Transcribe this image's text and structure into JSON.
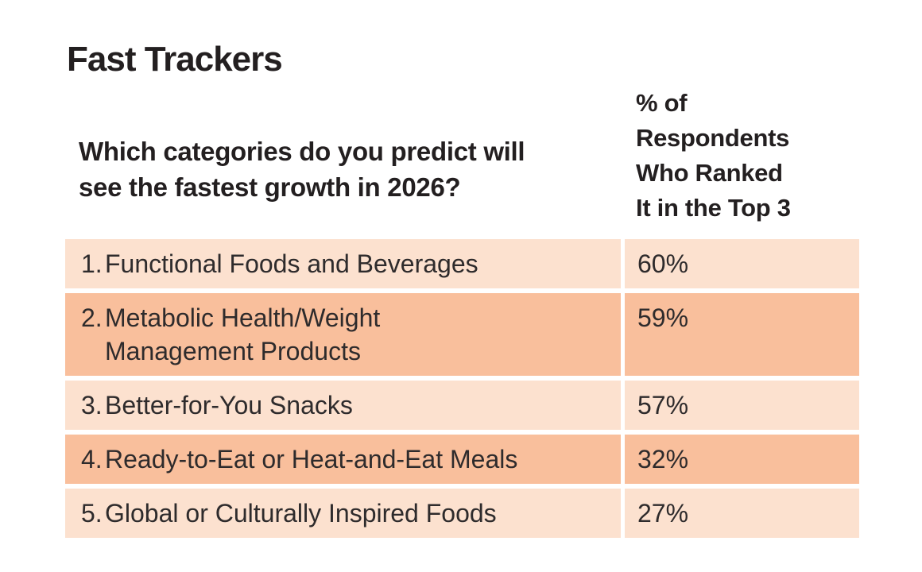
{
  "title": "Fast Trackers",
  "table": {
    "question": "Which categories do you predict will\nsee the fastest growth in 2026?",
    "value_header": "% of\nRespondents\nWho Ranked\nIt in the Top 3",
    "rows": [
      {
        "rank": "1.",
        "label": "Functional Foods and Beverages",
        "value": "60%"
      },
      {
        "rank": "2.",
        "label": "Metabolic Health/Weight\nManagement Products",
        "value": "59%"
      },
      {
        "rank": "3.",
        "label": "Better-for-You Snacks",
        "value": "57%"
      },
      {
        "rank": "4.",
        "label": "Ready-to-Eat or Heat-and-Eat Meals",
        "value": "32%"
      },
      {
        "rank": "5.",
        "label": "Global or Culturally Inspired Foods",
        "value": "27%"
      }
    ]
  },
  "colors": {
    "row_light": "#fce1cf",
    "row_dark": "#f9bf9c",
    "text_dark": "#231f20",
    "text_body": "#2e2b2c",
    "background": "#ffffff"
  },
  "chart_data": {
    "type": "table",
    "title": "Fast Trackers",
    "question": "Which categories do you predict will see the fastest growth in 2026?",
    "value_column_label": "% of Respondents Who Ranked It in the Top 3",
    "categories": [
      "Functional Foods and Beverages",
      "Metabolic Health/Weight Management Products",
      "Better-for-You Snacks",
      "Ready-to-Eat or Heat-and-Eat Meals",
      "Global or Culturally Inspired Foods"
    ],
    "values": [
      60,
      59,
      57,
      32,
      27
    ],
    "value_unit": "%",
    "layout": "ranked list, alternating light/dark peach row shading, value column top-aligned"
  }
}
